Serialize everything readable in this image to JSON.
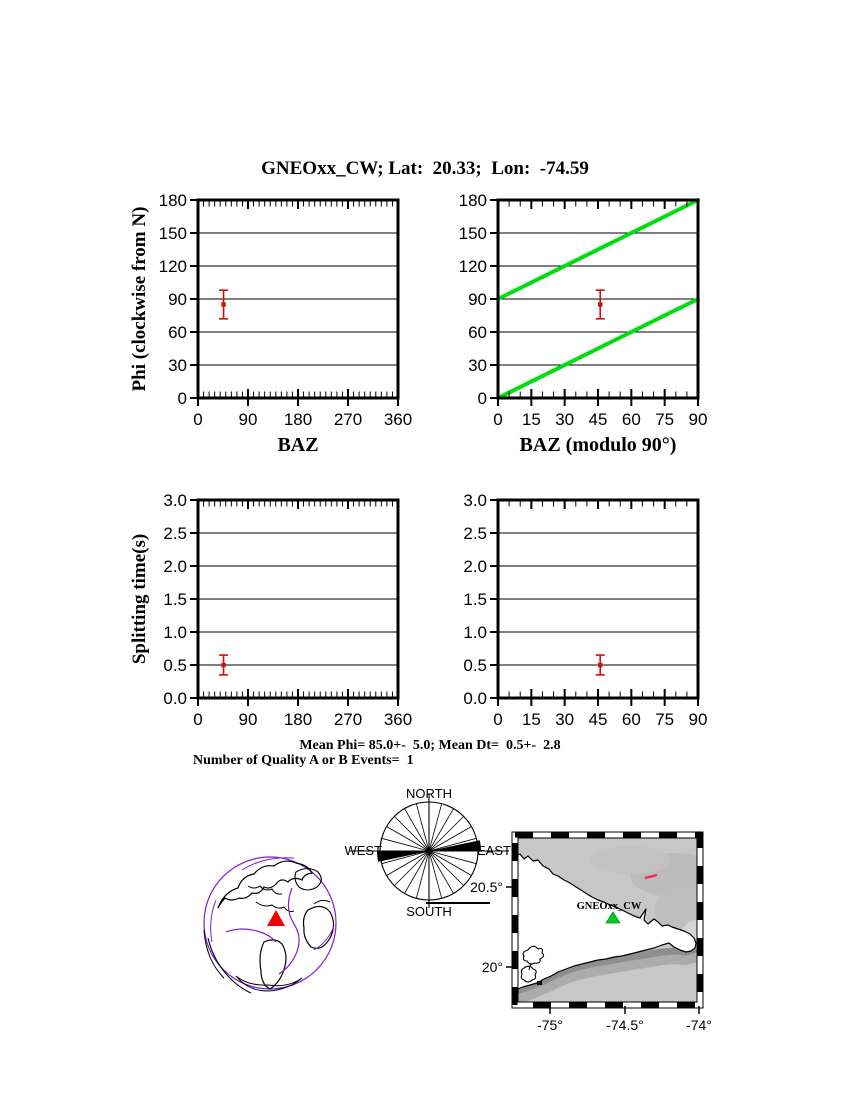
{
  "title": "GNEOxx_CW; Lat:  20.33;  Lon:  -74.59",
  "summary": {
    "line1": "Mean Phi= 85.0+-  5.0; Mean Dt=  0.5+-  2.8",
    "line2": "Number of Quality A or B Events=  1"
  },
  "colors": {
    "frame_black": "#000000",
    "null_line_green": "#00dd11",
    "error_bar_red": "#cc1111",
    "globe_marker_red": "#ee0000",
    "station_marker_green": "#00cc22",
    "plate_boundary_purple": "#7a1fd4",
    "map_red_dash": "#ee2255"
  },
  "chart_data": [
    {
      "id": "phi_vs_baz",
      "type": "scatter",
      "xlabel": "BAZ",
      "ylabel": "Phi (clockwise from N)",
      "x_range": [
        0,
        360
      ],
      "y_range": [
        0,
        180
      ],
      "x_ticks": [
        0,
        90,
        180,
        270,
        360
      ],
      "x_tick_labels": [
        "0",
        "90",
        "180",
        "270",
        "360"
      ],
      "y_ticks": [
        0,
        30,
        60,
        90,
        120,
        150,
        180
      ],
      "y_tick_labels": [
        "0",
        "30",
        "60",
        "90",
        "120",
        "150",
        "180"
      ],
      "x_minor_step": 10,
      "grid": "horizontal",
      "points": [
        {
          "x": 46,
          "y": 85,
          "yerr": 13
        }
      ],
      "lines": []
    },
    {
      "id": "phi_vs_baz_mod90",
      "type": "scatter",
      "xlabel": "BAZ (modulo 90°)",
      "ylabel": "",
      "x_range": [
        0,
        90
      ],
      "y_range": [
        0,
        180
      ],
      "x_ticks": [
        0,
        15,
        30,
        45,
        60,
        75,
        90
      ],
      "x_tick_labels": [
        "0",
        "15",
        "30",
        "45",
        "60",
        "75",
        "90"
      ],
      "y_ticks": [
        0,
        30,
        60,
        90,
        120,
        150,
        180
      ],
      "y_tick_labels": [
        "0",
        "30",
        "60",
        "90",
        "120",
        "150",
        "180"
      ],
      "x_minor_step": 5,
      "grid": "horizontal",
      "points": [
        {
          "x": 46,
          "y": 85,
          "yerr": 13
        }
      ],
      "lines": [
        {
          "x1": 0,
          "y1": 0,
          "x2": 90,
          "y2": 90,
          "color": "#00dd11",
          "width": 4
        },
        {
          "x1": 0,
          "y1": 90,
          "x2": 90,
          "y2": 180,
          "color": "#00dd11",
          "width": 4
        }
      ]
    },
    {
      "id": "dt_vs_baz",
      "type": "scatter",
      "xlabel": "",
      "ylabel": "Splitting time(s)",
      "x_range": [
        0,
        360
      ],
      "y_range": [
        0,
        3
      ],
      "x_ticks": [
        0,
        90,
        180,
        270,
        360
      ],
      "x_tick_labels": [
        "0",
        "90",
        "180",
        "270",
        "360"
      ],
      "y_ticks": [
        0,
        0.5,
        1,
        1.5,
        2,
        2.5,
        3
      ],
      "y_tick_labels": [
        "0.0",
        "0.5",
        "1.0",
        "1.5",
        "2.0",
        "2.5",
        "3.0"
      ],
      "x_minor_step": 10,
      "grid": "horizontal",
      "points": [
        {
          "x": 46,
          "y": 0.5,
          "yerr": 0.15
        }
      ],
      "lines": []
    },
    {
      "id": "dt_vs_baz_mod90",
      "type": "scatter",
      "xlabel": "",
      "ylabel": "",
      "x_range": [
        0,
        90
      ],
      "y_range": [
        0,
        3
      ],
      "x_ticks": [
        0,
        15,
        30,
        45,
        60,
        75,
        90
      ],
      "x_tick_labels": [
        "0",
        "15",
        "30",
        "45",
        "60",
        "75",
        "90"
      ],
      "y_ticks": [
        0,
        0.5,
        1,
        1.5,
        2,
        2.5,
        3
      ],
      "y_tick_labels": [
        "0.0",
        "0.5",
        "1.0",
        "1.5",
        "2.0",
        "2.5",
        "3.0"
      ],
      "x_minor_step": 5,
      "grid": "horizontal",
      "points": [
        {
          "x": 46,
          "y": 0.5,
          "yerr": 0.15
        }
      ],
      "lines": []
    }
  ],
  "rose": {
    "labels": {
      "north": "NORTH",
      "south": "SOUTH",
      "east": "EAST",
      "west": "WEST"
    },
    "spoke_step_deg": 15,
    "wedges_deg": [
      [
        78,
        90
      ],
      [
        258,
        270
      ]
    ]
  },
  "map": {
    "x_tick_labels": [
      "-75°",
      "-74.5°",
      "-74°"
    ],
    "y_tick_labels": [
      "20.5°",
      "20°"
    ],
    "station_label": "GNEOxx_CW"
  }
}
